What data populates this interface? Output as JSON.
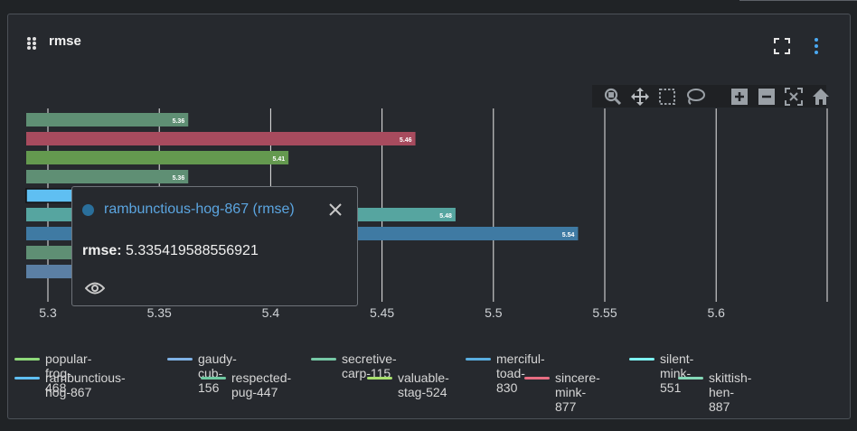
{
  "panel": {
    "title": "rmse"
  },
  "icons": {
    "drag": "drag-handle-icon",
    "fullscreen": "fullscreen-icon",
    "menu": "kebab-menu-icon",
    "toolbar": [
      "zoom-icon",
      "pan-icon",
      "box-select-icon",
      "lasso-select-icon",
      "zoom-in-icon",
      "zoom-out-icon",
      "autoscale-icon",
      "reset-axes-icon"
    ],
    "tooltip_close": "close-icon",
    "tooltip_eye": "eye-icon"
  },
  "tooltip": {
    "title": "rambunctious-hog-867 (rmse)",
    "metric_label": "rmse:",
    "metric_value": "5.335419588556921",
    "color": "#2a6f9b"
  },
  "chart_data": {
    "type": "bar",
    "orientation": "horizontal",
    "xlim": [
      5.29,
      5.65
    ],
    "xticks": [
      "5.3",
      "5.35",
      "5.4",
      "5.45",
      "5.5",
      "5.55",
      "5.6"
    ],
    "grid": true,
    "legend_position": "bottom",
    "bars": [
      {
        "value": 5.363,
        "label": "5.36",
        "color": "#5f8f74"
      },
      {
        "value": 5.465,
        "label": "5.46",
        "color": "#a74b5e"
      },
      {
        "value": 5.408,
        "label": "5.41",
        "color": "#64994f"
      },
      {
        "value": 5.363,
        "label": "5.36",
        "color": "#5f8f74"
      },
      {
        "value": 5.335,
        "label": "5.34",
        "color": "#5fbff2",
        "highlight": true
      },
      {
        "value": 5.483,
        "label": "5.48",
        "color": "#56a5a0"
      },
      {
        "value": 5.538,
        "label": "5.54",
        "color": "#3f7aa3"
      },
      {
        "value": 5.37,
        "label": "",
        "color": "#5f8f74"
      },
      {
        "value": 5.36,
        "label": "",
        "color": "#5b7fa4"
      }
    ],
    "series": [
      {
        "name": "popular-frog-468",
        "color": "#8ed97a"
      },
      {
        "name": "gaudy-cub-156",
        "color": "#7fb2e5"
      },
      {
        "name": "secretive-carp-115",
        "color": "#76c9a6"
      },
      {
        "name": "merciful-toad-830",
        "color": "#5aaee0"
      },
      {
        "name": "silent-mink-551",
        "color": "#7ef2f2"
      },
      {
        "name": "rambunctious-hog-867",
        "color": "#5fbff2"
      },
      {
        "name": "respected-pug-447",
        "color": "#6ec9a1"
      },
      {
        "name": "valuable-stag-524",
        "color": "#a8e06e"
      },
      {
        "name": "sincere-mink-877",
        "color": "#e86d82"
      },
      {
        "name": "skittish-hen-887",
        "color": "#84d8b8"
      }
    ]
  }
}
